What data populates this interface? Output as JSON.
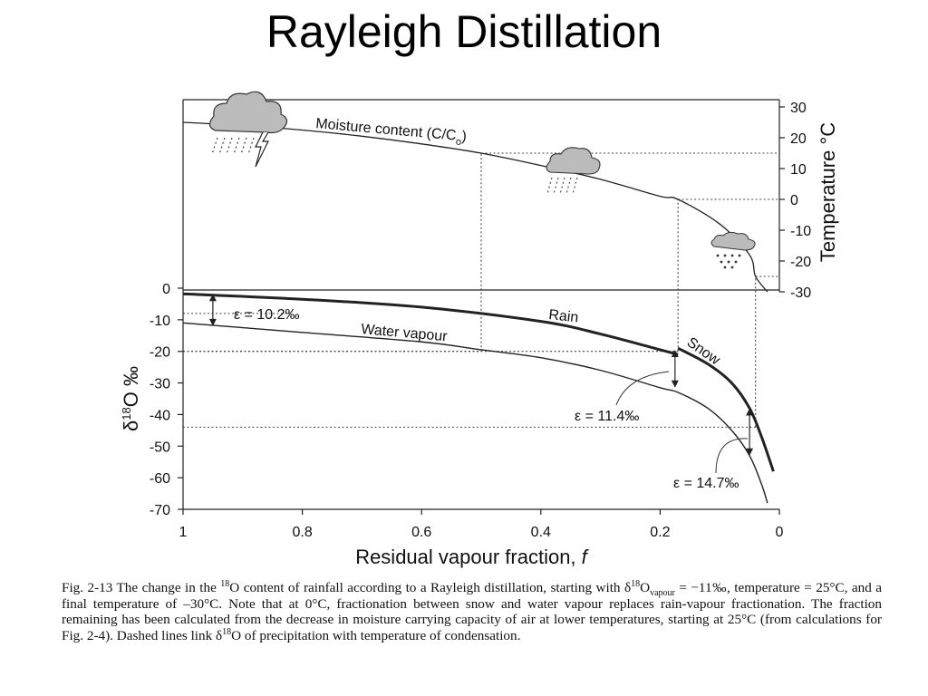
{
  "title": "Rayleigh Distillation",
  "chart_data": {
    "type": "line",
    "xlabel": "Residual vapour fraction, f",
    "xlabel_main": "Residual vapour fraction,",
    "xlabel_var": "f",
    "x_ticks": [
      "1",
      "0.8",
      "0.6",
      "0.4",
      "0.2",
      "0"
    ],
    "xlim": [
      1,
      0
    ],
    "top_panel": {
      "ylabel": "Temperature °C",
      "ylim": [
        -30,
        30
      ],
      "y_ticks": [
        "30",
        "20",
        "10",
        "0",
        "-10",
        "-20",
        "-30"
      ],
      "series": [
        {
          "name": "Moisture content (C/C",
          "name_sub": "o",
          "name_close": ")",
          "unit": "°C",
          "x": [
            1,
            0.9,
            0.8,
            0.7,
            0.6,
            0.5,
            0.4,
            0.3,
            0.2,
            0.17,
            0.1,
            0.05,
            0.04,
            0.02
          ],
          "y": [
            25,
            24,
            22.5,
            20.5,
            18,
            15,
            11,
            6.5,
            1,
            0,
            -8,
            -18,
            -25,
            -30
          ]
        }
      ]
    },
    "bottom_panel": {
      "ylabel": "δ¹⁸O ‰",
      "ylabel_delta": "δ",
      "ylabel_sup": "18",
      "ylabel_rest": "O ‰",
      "ylim": [
        -70,
        0
      ],
      "y_ticks": [
        "0",
        "-10",
        "-20",
        "-30",
        "-40",
        "-50",
        "-60",
        "-70"
      ],
      "series": [
        {
          "name": "Rain",
          "x": [
            1,
            0.8,
            0.6,
            0.4,
            0.3,
            0.2,
            0.17
          ],
          "y": [
            -1.8,
            -3.5,
            -6,
            -10.5,
            -14.5,
            -19.5,
            -21
          ]
        },
        {
          "name": "Water vapour",
          "x": [
            1,
            0.8,
            0.6,
            0.5,
            0.4,
            0.3,
            0.2,
            0.17,
            0.12,
            0.08,
            0.05,
            0.03,
            0.02
          ],
          "y": [
            -11,
            -14,
            -17,
            -19.5,
            -22,
            -26,
            -31.5,
            -33,
            -38,
            -45,
            -53,
            -62,
            -68
          ]
        },
        {
          "name": "Snow",
          "x": [
            0.17,
            0.12,
            0.08,
            0.05,
            0.03,
            0.01
          ],
          "y": [
            -19,
            -24,
            -30,
            -38,
            -47,
            -58
          ]
        }
      ],
      "annotations": [
        {
          "text": "ε = 10.2‰",
          "x": 0.95,
          "y_from": -1.8,
          "y_to": -12
        },
        {
          "text": "ε = 11.4‰",
          "x": 0.175,
          "y_from": -19.5,
          "y_to": -31.5
        },
        {
          "text": "ε = 14.7‰",
          "x": 0.05,
          "y_from": -38,
          "y_to": -53
        }
      ],
      "dashed_links": [
        {
          "x": 0.5,
          "temp": 15,
          "d18O": -20
        },
        {
          "x": 0.17,
          "temp": 0,
          "d18O": -20
        },
        {
          "x": 0.04,
          "temp": -25,
          "d18O": -44
        },
        {
          "x": 1,
          "temp": null,
          "d18O": -8
        }
      ]
    }
  },
  "caption": {
    "p1": "Fig. 2-13  The change in the ",
    "sup1": "18",
    "p2": "O content of rainfall according to a Rayleigh distillation, starting with δ",
    "sup2": "18",
    "p3": "O",
    "sub1": "vapour",
    "p4": " = −11‰, temperature = 25°C, and a final temperature of –30°C. Note that at 0°C, fractionation between snow and water vapour replaces rain-vapour fractionation. The fraction remaining has been calculated from the decrease in moisture carrying capacity of air at lower temperatures, starting at 25°C (from calculations for Fig. 2-4). Dashed lines link δ",
    "sup3": "18",
    "p5": "O of precipitation with temperature of condensation."
  },
  "icons": [
    "storm-cloud-icon",
    "rain-cloud-icon",
    "snow-cloud-icon"
  ]
}
